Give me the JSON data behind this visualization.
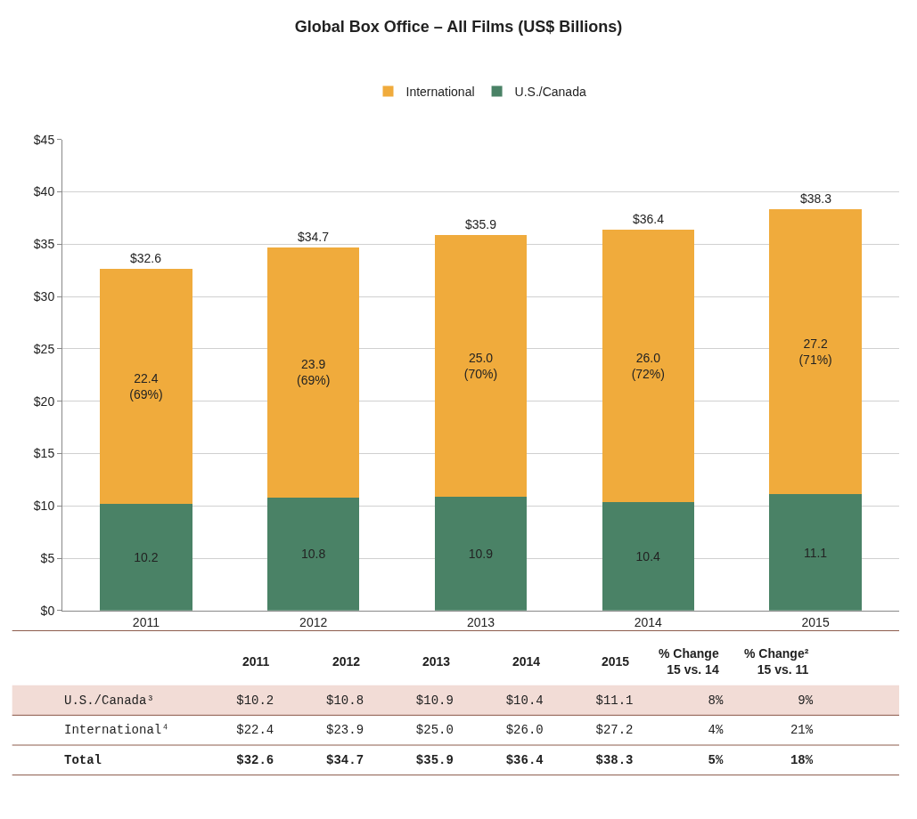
{
  "chart_data": {
    "type": "bar",
    "stacked": true,
    "title": "Global Box Office – All Films (US$ Billions)",
    "categories": [
      "2011",
      "2012",
      "2013",
      "2014",
      "2015"
    ],
    "series": [
      {
        "name": "U.S./Canada",
        "color": "#4a8266",
        "values": [
          10.2,
          10.8,
          10.9,
          10.4,
          11.1
        ],
        "value_labels": [
          "10.2",
          "10.8",
          "10.9",
          "10.4",
          "11.1"
        ]
      },
      {
        "name": "International",
        "color": "#f0ab3c",
        "values": [
          22.4,
          23.9,
          25.0,
          26.0,
          27.2
        ],
        "value_labels": [
          "22.4\n(69%)",
          "23.9\n(69%)",
          "25.0\n(70%)",
          "26.0\n(72%)",
          "27.2\n(71%)"
        ]
      }
    ],
    "totals": [
      "$32.6",
      "$34.7",
      "$35.9",
      "$36.4",
      "$38.3"
    ],
    "ylim": [
      0,
      45
    ],
    "yticks": [
      {
        "value": 0,
        "label": "$0"
      },
      {
        "value": 5,
        "label": "$5"
      },
      {
        "value": 10,
        "label": "$10"
      },
      {
        "value": 15,
        "label": "$15"
      },
      {
        "value": 20,
        "label": "$20"
      },
      {
        "value": 25,
        "label": "$25"
      },
      {
        "value": 30,
        "label": "$30"
      },
      {
        "value": 35,
        "label": "$35"
      },
      {
        "value": 40,
        "label": "$40"
      },
      {
        "value": 45,
        "label": "$45"
      }
    ],
    "grid": "y",
    "legend": "top",
    "annotations": [
      "\t2011\t2012\t2013\t2014\t2015\t% Change\n15 vs. 14\t% Change²\n15 vs. 11",
      "U.S./Canada³\t$10.2\t$10.8\t$10.9\t$10.4\t$11.1\t8%\t9%",
      "International⁴\t$22.4\t$23.9\t$25.0\t$26.0\t$27.2\t4%\t21%",
      "Total\t$32.6\t$34.7\t$35.9\t$36.4\t$38.3\t5%\t18%"
    ]
  }
}
